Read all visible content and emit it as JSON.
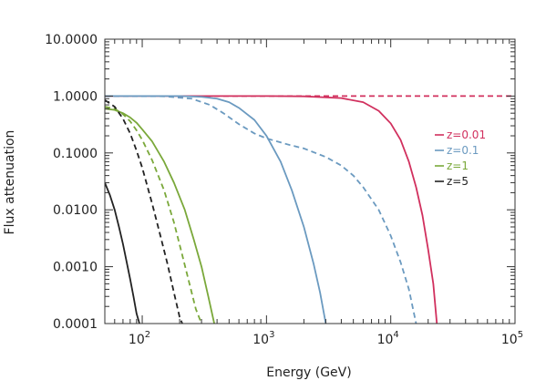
{
  "chart_data": {
    "type": "line",
    "title": "",
    "xlabel": "Energy (GeV)",
    "ylabel": "Flux attenuation",
    "x_scale": "log",
    "y_scale": "log",
    "xlim": [
      50,
      100000
    ],
    "ylim": [
      0.0001,
      10
    ],
    "x_tick_labels": [
      {
        "value": 100,
        "base": "10",
        "exp": "2"
      },
      {
        "value": 1000,
        "base": "10",
        "exp": "3"
      },
      {
        "value": 10000,
        "base": "10",
        "exp": "4"
      },
      {
        "value": 100000,
        "base": "10",
        "exp": "5"
      }
    ],
    "y_tick_labels": [
      {
        "value": 10,
        "text": "10.0000"
      },
      {
        "value": 1,
        "text": "1.0000"
      },
      {
        "value": 0.1,
        "text": "0.1000"
      },
      {
        "value": 0.01,
        "text": "0.0100"
      },
      {
        "value": 0.001,
        "text": "0.0010"
      },
      {
        "value": 0.0001,
        "text": "0.0001"
      }
    ],
    "grid": false,
    "legend_position": "right",
    "legend": [
      {
        "label": "z=0.01",
        "color": "#d1305e"
      },
      {
        "label": "z=0.1",
        "color": "#6b9ac0"
      },
      {
        "label": "z=1",
        "color": "#7aa83a"
      },
      {
        "label": "z=5",
        "color": "#222222"
      }
    ],
    "series": [
      {
        "name": "z=0.01",
        "color": "#d1305e",
        "dash": false,
        "points": [
          [
            50,
            1.0
          ],
          [
            200,
            1.0
          ],
          [
            1000,
            1.0
          ],
          [
            2000,
            0.99
          ],
          [
            4000,
            0.92
          ],
          [
            6000,
            0.78
          ],
          [
            8000,
            0.55
          ],
          [
            10000,
            0.33
          ],
          [
            12000,
            0.17
          ],
          [
            14000,
            0.07
          ],
          [
            16000,
            0.025
          ],
          [
            18000,
            0.008
          ],
          [
            20000,
            0.002
          ],
          [
            22000,
            0.0005
          ],
          [
            23500,
            0.0001
          ]
        ]
      },
      {
        "name": "z=0.01",
        "color": "#d1305e",
        "dash": true,
        "points": [
          [
            50,
            1.0
          ],
          [
            100000,
            1.0
          ]
        ]
      },
      {
        "name": "z=0.1",
        "color": "#6b9ac0",
        "dash": false,
        "points": [
          [
            50,
            1.0
          ],
          [
            200,
            1.0
          ],
          [
            300,
            0.97
          ],
          [
            400,
            0.9
          ],
          [
            500,
            0.78
          ],
          [
            600,
            0.62
          ],
          [
            800,
            0.38
          ],
          [
            1000,
            0.2
          ],
          [
            1300,
            0.07
          ],
          [
            1600,
            0.022
          ],
          [
            2000,
            0.005
          ],
          [
            2400,
            0.0011
          ],
          [
            2700,
            0.00035
          ],
          [
            3000,
            0.0001
          ]
        ]
      },
      {
        "name": "z=0.1",
        "color": "#6b9ac0",
        "dash": true,
        "points": [
          [
            50,
            1.0
          ],
          [
            150,
            0.99
          ],
          [
            250,
            0.9
          ],
          [
            350,
            0.7
          ],
          [
            450,
            0.5
          ],
          [
            600,
            0.32
          ],
          [
            800,
            0.22
          ],
          [
            1000,
            0.18
          ],
          [
            1500,
            0.14
          ],
          [
            2000,
            0.12
          ],
          [
            3000,
            0.085
          ],
          [
            4000,
            0.06
          ],
          [
            5000,
            0.04
          ],
          [
            6000,
            0.025
          ],
          [
            8000,
            0.01
          ],
          [
            10000,
            0.0035
          ],
          [
            12000,
            0.0012
          ],
          [
            14000,
            0.0004
          ],
          [
            16000,
            0.0001
          ]
        ]
      },
      {
        "name": "z=1",
        "color": "#7aa83a",
        "dash": false,
        "points": [
          [
            50,
            0.6
          ],
          [
            60,
            0.57
          ],
          [
            70,
            0.5
          ],
          [
            80,
            0.42
          ],
          [
            90,
            0.34
          ],
          [
            100,
            0.26
          ],
          [
            120,
            0.16
          ],
          [
            150,
            0.07
          ],
          [
            180,
            0.03
          ],
          [
            220,
            0.01
          ],
          [
            260,
            0.003
          ],
          [
            300,
            0.001
          ],
          [
            340,
            0.0003
          ],
          [
            380,
            0.0001
          ]
        ]
      },
      {
        "name": "z=1",
        "color": "#7aa83a",
        "dash": true,
        "points": [
          [
            50,
            0.65
          ],
          [
            60,
            0.6
          ],
          [
            70,
            0.48
          ],
          [
            80,
            0.36
          ],
          [
            90,
            0.25
          ],
          [
            100,
            0.17
          ],
          [
            120,
            0.075
          ],
          [
            150,
            0.022
          ],
          [
            180,
            0.006
          ],
          [
            210,
            0.0016
          ],
          [
            240,
            0.0005
          ],
          [
            270,
            0.00018
          ],
          [
            300,
            0.0001
          ]
        ]
      },
      {
        "name": "z=5",
        "color": "#222222",
        "dash": false,
        "points": [
          [
            50,
            0.03
          ],
          [
            55,
            0.018
          ],
          [
            60,
            0.01
          ],
          [
            65,
            0.005
          ],
          [
            70,
            0.0025
          ],
          [
            75,
            0.0012
          ],
          [
            80,
            0.0006
          ],
          [
            85,
            0.0003
          ],
          [
            90,
            0.00015
          ],
          [
            95,
            0.0001
          ]
        ]
      },
      {
        "name": "z=5",
        "color": "#222222",
        "dash": true,
        "points": [
          [
            50,
            0.85
          ],
          [
            60,
            0.65
          ],
          [
            70,
            0.4
          ],
          [
            80,
            0.22
          ],
          [
            90,
            0.11
          ],
          [
            100,
            0.055
          ],
          [
            120,
            0.013
          ],
          [
            140,
            0.0035
          ],
          [
            160,
            0.0011
          ],
          [
            180,
            0.00035
          ],
          [
            200,
            0.00013
          ],
          [
            210,
            0.0001
          ]
        ]
      }
    ]
  }
}
